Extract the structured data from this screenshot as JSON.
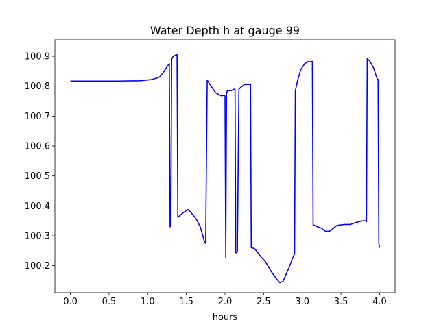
{
  "chart_data": {
    "type": "line",
    "title": "Water Depth h at gauge 99",
    "xlabel": "hours",
    "ylabel": "",
    "xlim": [
      -0.2,
      4.2
    ],
    "ylim": [
      100.11,
      100.955
    ],
    "xticks": [
      0.0,
      0.5,
      1.0,
      1.5,
      2.0,
      2.5,
      3.0,
      3.5,
      4.0
    ],
    "xtick_labels": [
      "0.0",
      "0.5",
      "1.0",
      "1.5",
      "2.0",
      "2.5",
      "3.0",
      "3.5",
      "4.0"
    ],
    "yticks": [
      100.2,
      100.3,
      100.4,
      100.5,
      100.6,
      100.7,
      100.8,
      100.9
    ],
    "ytick_labels": [
      "100.2",
      "100.3",
      "100.4",
      "100.5",
      "100.6",
      "100.7",
      "100.8",
      "100.9"
    ],
    "grid": false,
    "series": [
      {
        "color": "#0000ff",
        "x": [
          0.0,
          0.3,
          0.6,
          0.9,
          1.05,
          1.15,
          1.2,
          1.25,
          1.28,
          1.29,
          1.3,
          1.31,
          1.33,
          1.37,
          1.38,
          1.39,
          1.45,
          1.52,
          1.56,
          1.63,
          1.68,
          1.73,
          1.75,
          1.77,
          1.82,
          1.88,
          1.95,
          2.0,
          2.01,
          2.02,
          2.03,
          2.08,
          2.12,
          2.13,
          2.14,
          2.16,
          2.18,
          2.2,
          2.25,
          2.32,
          2.33,
          2.34,
          2.38,
          2.42,
          2.47,
          2.52,
          2.6,
          2.67,
          2.71,
          2.75,
          2.78,
          2.83,
          2.89,
          2.9,
          2.91,
          2.94,
          2.98,
          3.03,
          3.07,
          3.12,
          3.13,
          3.14,
          3.2,
          3.25,
          3.3,
          3.35,
          3.45,
          3.55,
          3.62,
          3.7,
          3.78,
          3.82,
          3.83,
          3.84,
          3.87,
          3.92,
          3.97,
          3.98,
          3.99,
          4.0
        ],
        "y": [
          100.817,
          100.817,
          100.817,
          100.818,
          100.822,
          100.83,
          100.845,
          100.865,
          100.875,
          100.33,
          100.335,
          100.89,
          100.9,
          100.905,
          100.905,
          100.362,
          100.375,
          100.388,
          100.378,
          100.355,
          100.33,
          100.285,
          100.275,
          100.82,
          100.8,
          100.778,
          100.768,
          100.77,
          100.228,
          100.775,
          100.785,
          100.785,
          100.79,
          100.79,
          100.243,
          100.247,
          100.79,
          100.795,
          100.805,
          100.806,
          100.806,
          100.26,
          100.258,
          100.245,
          100.228,
          100.215,
          100.18,
          100.155,
          100.143,
          100.148,
          100.165,
          100.195,
          100.235,
          100.24,
          100.785,
          100.82,
          100.855,
          100.875,
          100.882,
          100.882,
          100.883,
          100.337,
          100.33,
          100.325,
          100.315,
          100.315,
          100.335,
          100.338,
          100.338,
          100.345,
          100.35,
          100.35,
          100.347,
          100.892,
          100.885,
          100.862,
          100.823,
          100.823,
          100.275,
          100.26
        ]
      }
    ]
  }
}
